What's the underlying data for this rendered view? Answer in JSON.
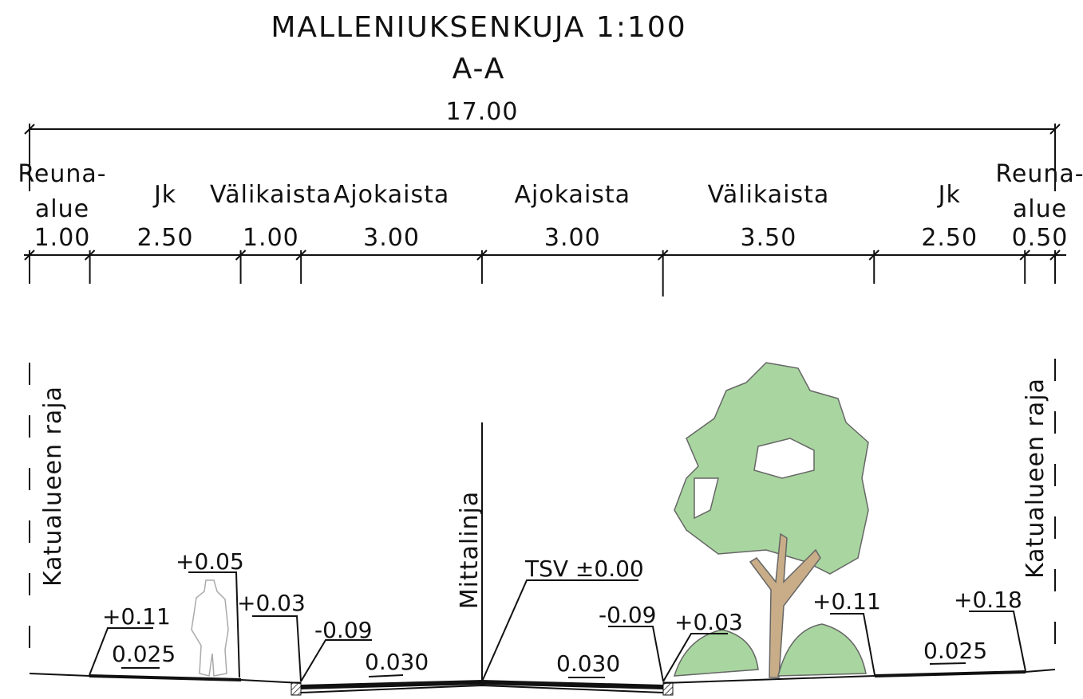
{
  "header": {
    "title": "MALLENIUKSENKUJA 1:100",
    "section": "A-A",
    "total_width": "17.00"
  },
  "sections": [
    {
      "label": [
        "Reuna-",
        "alue"
      ],
      "width": "1.00"
    },
    {
      "label": [
        "Jk"
      ],
      "width": "2.50"
    },
    {
      "label": [
        "Välikaista"
      ],
      "width": "1.00"
    },
    {
      "label": [
        "Ajokaista"
      ],
      "width": "3.00"
    },
    {
      "label": [
        "Ajokaista"
      ],
      "width": "3.00"
    },
    {
      "label": [
        "Välikaista"
      ],
      "width": "3.50"
    },
    {
      "label": [
        "Jk"
      ],
      "width": "2.50"
    },
    {
      "label": [
        "Reuna-",
        "alue"
      ],
      "width": "0.50"
    }
  ],
  "boundary_labels": [
    "Katualueen raja",
    "Katualueen raja"
  ],
  "centerline_label": "Mittalinja",
  "elevations": [
    "+0.11",
    "+0.05",
    "+0.03",
    "-0.09",
    "TSV ±0.00",
    "-0.09",
    "+0.03",
    "+0.11",
    "+0.18"
  ],
  "slopes": [
    "0.025",
    "0.030",
    "0.030",
    "0.025"
  ]
}
